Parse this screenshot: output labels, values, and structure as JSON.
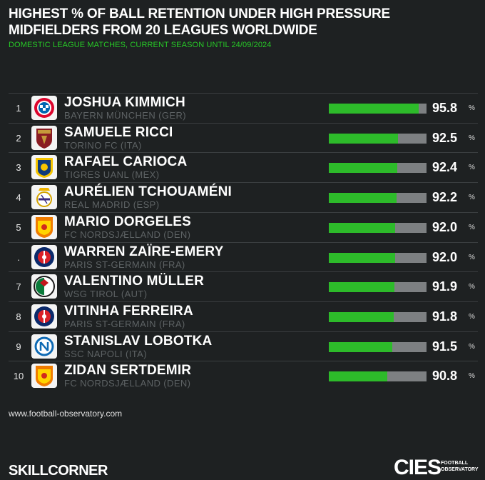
{
  "chart_data": {
    "type": "bar",
    "title_line1": "HIGHEST % OF BALL RETENTION UNDER HIGH PRESSURE",
    "title_line2": "MIDFIELDERS FROM 20 LEAGUES WORLDWIDE",
    "subtitle": "DOMESTIC LEAGUE MATCHES, CURRENT SEASON UNTIL 24/09/2024",
    "xlim": [
      0,
      100
    ],
    "unit": "%",
    "rows": [
      {
        "rank": "1",
        "player": "JOSHUA KIMMICH",
        "club": "BAYERN MÜNCHEN (GER)",
        "value": 95.8,
        "value_label": "95.8",
        "logo": "bayern-munchen-crest-icon"
      },
      {
        "rank": "2",
        "player": "SAMUELE RICCI",
        "club": "TORINO FC (ITA)",
        "value": 92.5,
        "value_label": "92.5",
        "logo": "torino-crest-icon"
      },
      {
        "rank": "3",
        "player": "RAFAEL CARIOCA",
        "club": "TIGRES UANL (MEX)",
        "value": 92.4,
        "value_label": "92.4",
        "logo": "tigres-crest-icon"
      },
      {
        "rank": "4",
        "player": "AURÉLIEN TCHOUAMÉNI",
        "club": "REAL MADRID (ESP)",
        "value": 92.2,
        "value_label": "92.2",
        "logo": "real-madrid-crest-icon"
      },
      {
        "rank": "5",
        "player": "MARIO DORGELES",
        "club": "FC NORDSJÆLLAND (DEN)",
        "value": 92.0,
        "value_label": "92.0",
        "logo": "nordsjaelland-crest-icon"
      },
      {
        "rank": ".",
        "player": "WARREN ZAÏRE-EMERY",
        "club": "PARIS ST-GERMAIN (FRA)",
        "value": 92.0,
        "value_label": "92.0",
        "logo": "psg-crest-icon"
      },
      {
        "rank": "7",
        "player": "VALENTINO MÜLLER",
        "club": "WSG TIROL (AUT)",
        "value": 91.9,
        "value_label": "91.9",
        "logo": "wsg-tirol-crest-icon"
      },
      {
        "rank": "8",
        "player": "VITINHA FERREIRA",
        "club": "PARIS ST-GERMAIN (FRA)",
        "value": 91.8,
        "value_label": "91.8",
        "logo": "psg-crest-icon"
      },
      {
        "rank": "9",
        "player": "STANISLAV LOBOTKA",
        "club": "SSC NAPOLI (ITA)",
        "value": 91.5,
        "value_label": "91.5",
        "logo": "napoli-crest-icon"
      },
      {
        "rank": "10",
        "player": "ZIDAN SERTDEMIR",
        "club": "FC NORDSJÆLLAND (DEN)",
        "value": 90.8,
        "value_label": "90.8",
        "logo": "nordsjaelland-crest-icon"
      }
    ]
  },
  "footer": {
    "url": "www.football-observatory.com",
    "brand_left": "SKILLCORNER",
    "brand_right_word": "CIES",
    "brand_right_sub1": "FOOTBALL",
    "brand_right_sub2": "OBSERVATORY"
  },
  "colors": {
    "background": "#1e2122",
    "bar_fill": "#2dbb2a",
    "bar_track": "#7d8082",
    "subtitle": "#27c927",
    "club_text": "#5d6264"
  }
}
